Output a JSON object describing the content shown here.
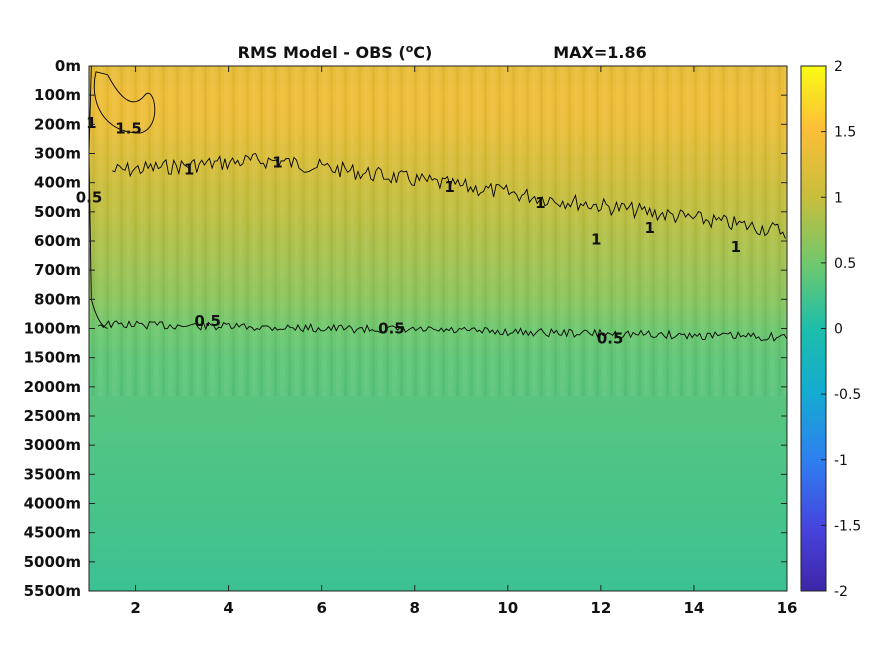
{
  "chart_data": {
    "type": "heatmap",
    "title": "RMS Model - OBS (",
    "title_superscript": "o",
    "title_unit_suffix": "C)",
    "max_label": "MAX=1.86",
    "xlabel": "",
    "ylabel": "",
    "xlim": [
      1,
      16
    ],
    "x_ticks": [
      2,
      4,
      6,
      8,
      10,
      12,
      14,
      16
    ],
    "x_tick_labels": [
      "2",
      "4",
      "6",
      "8",
      "10",
      "12",
      "14",
      "16"
    ],
    "y_tick_labels": [
      "0m",
      "100m",
      "200m",
      "300m",
      "400m",
      "500m",
      "600m",
      "700m",
      "800m",
      "1000m",
      "1500m",
      "2000m",
      "2500m",
      "3000m",
      "3500m",
      "4000m",
      "4500m",
      "5000m",
      "5500m"
    ],
    "colorbar": {
      "range": [
        -2,
        2
      ],
      "ticks": [
        2,
        1.5,
        1,
        0.5,
        0,
        -0.5,
        -1,
        -1.5,
        -2
      ],
      "tick_labels": [
        "2",
        "1.5",
        "1",
        "0.5",
        "0",
        "-0.5",
        "-1",
        "-1.5",
        "-2"
      ],
      "colormap": "parula"
    },
    "contour_labels": [
      {
        "text": "1.5",
        "x": 1.85,
        "y_level": 2.15
      },
      {
        "text": "1",
        "x": 1.05,
        "y_level": 1.95
      },
      {
        "text": "0.5",
        "x": 1.0,
        "y_level": 4.5
      },
      {
        "text": "1",
        "x": 3.15,
        "y_level": 3.55
      },
      {
        "text": "1",
        "x": 5.05,
        "y_level": 3.3
      },
      {
        "text": "1",
        "x": 8.75,
        "y_level": 4.15
      },
      {
        "text": "1",
        "x": 10.7,
        "y_level": 4.7
      },
      {
        "text": "1",
        "x": 11.9,
        "y_level": 5.95
      },
      {
        "text": "1",
        "x": 13.05,
        "y_level": 5.55
      },
      {
        "text": "1",
        "x": 14.9,
        "y_level": 6.2
      },
      {
        "text": "0.5",
        "x": 3.55,
        "y_level": 8.75
      },
      {
        "text": "0.5",
        "x": 7.5,
        "y_level": 9.0
      },
      {
        "text": "0.5",
        "x": 12.2,
        "y_level": 9.35
      }
    ],
    "field_by_depth_level": [
      {
        "y_level": 0,
        "value": 1.3
      },
      {
        "y_level": 1,
        "value": 1.4
      },
      {
        "y_level": 2,
        "value": 1.35
      },
      {
        "y_level": 3,
        "value": 1.2
      },
      {
        "y_level": 4,
        "value": 1.05
      },
      {
        "y_level": 5,
        "value": 0.95
      },
      {
        "y_level": 6,
        "value": 0.85
      },
      {
        "y_level": 7,
        "value": 0.75
      },
      {
        "y_level": 8,
        "value": 0.65
      },
      {
        "y_level": 9,
        "value": 0.48
      },
      {
        "y_level": 10,
        "value": 0.4
      },
      {
        "y_level": 12,
        "value": 0.34
      },
      {
        "y_level": 14,
        "value": 0.28
      },
      {
        "y_level": 16,
        "value": 0.24
      },
      {
        "y_level": 18,
        "value": 0.18
      }
    ],
    "grid": false
  }
}
